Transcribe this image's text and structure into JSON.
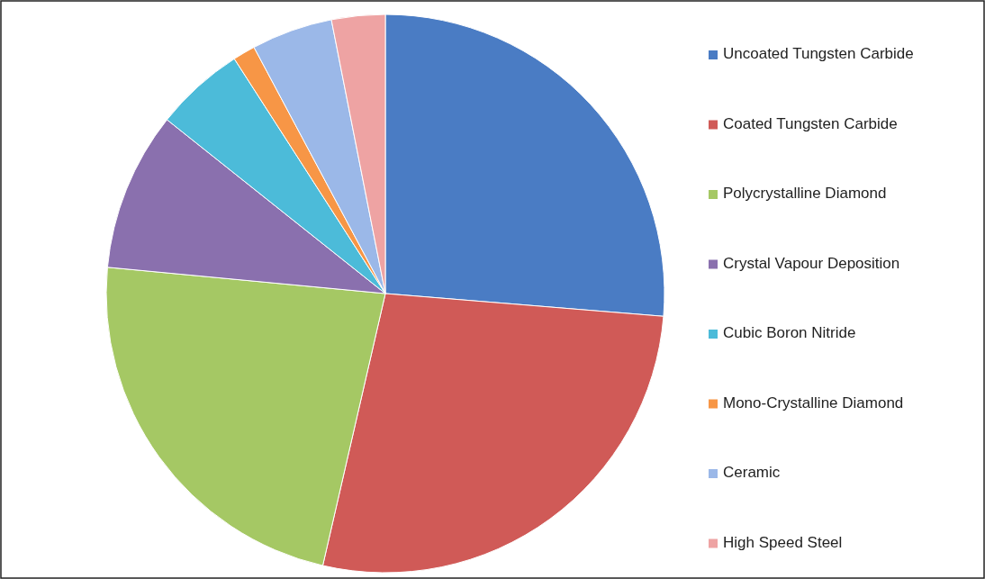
{
  "chart_data": {
    "type": "pie",
    "categories": [
      "Uncoated Tungsten Carbide",
      "Coated Tungsten Carbide",
      "Polycrystalline Diamond",
      "Crystal Vapour Deposition",
      "Cubic Boron Nitride",
      "Mono-Crystalline Diamond",
      "Ceramic",
      "High Speed Steel"
    ],
    "values": [
      26.3,
      27.3,
      22.9,
      9.2,
      5.2,
      1.3,
      4.7,
      3.1
    ],
    "colors": [
      "#4a7cc4",
      "#d05a57",
      "#a5c864",
      "#8a70ae",
      "#4cbbd9",
      "#f79646",
      "#9bb8e8",
      "#eea3a3"
    ],
    "legend": "right"
  }
}
